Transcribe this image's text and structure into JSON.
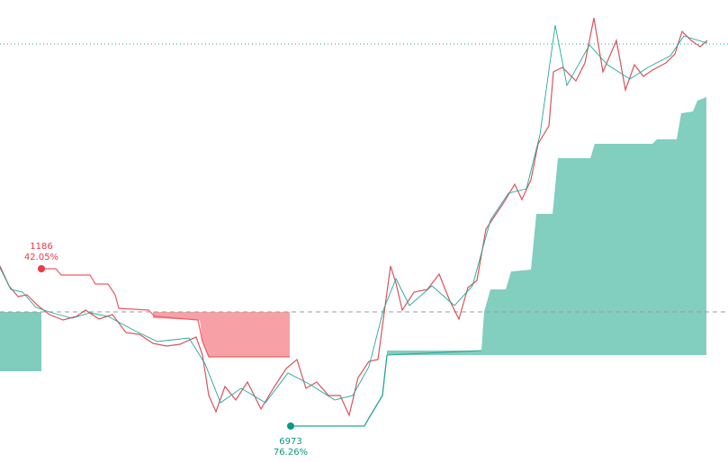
{
  "annotations": [
    {
      "value": "1186",
      "percent": "42.05%"
    },
    {
      "value": "6973",
      "percent": "76.26%"
    }
  ]
}
